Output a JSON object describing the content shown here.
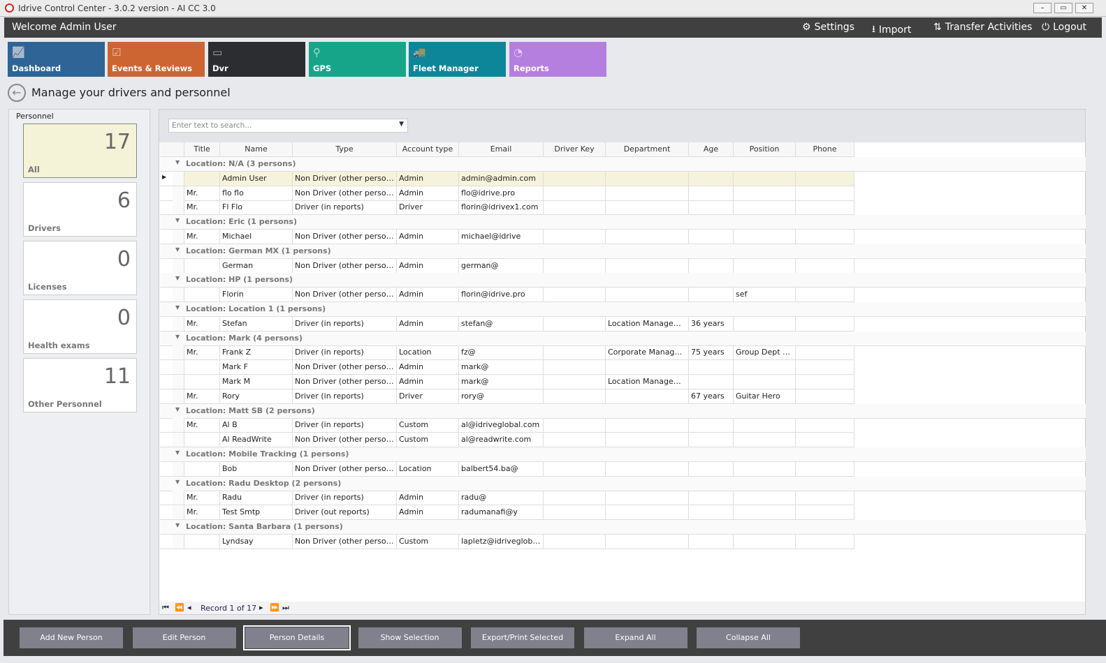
{
  "window": {
    "title": "Idrive Control Center - 3.0.2 version - AI CC 3.0",
    "controls": [
      "–",
      "▭",
      "✕"
    ]
  },
  "topbar": {
    "welcome": "Welcome Admin User",
    "links": [
      {
        "label": "Settings",
        "icon": "⚙"
      },
      {
        "label": "Import",
        "icon": "⭳"
      },
      {
        "label": "Transfer Activities",
        "icon": "⇅"
      },
      {
        "label": "Logout",
        "icon": "⏻"
      }
    ]
  },
  "tiles": [
    {
      "label": "Dashboard",
      "color": "#2f6496",
      "icon": "📈"
    },
    {
      "label": "Events & Reviews",
      "color": "#cd6533",
      "icon": "☑"
    },
    {
      "label": "Dvr",
      "color": "#2b2d31",
      "icon": "▭"
    },
    {
      "label": "GPS",
      "color": "#17a589",
      "icon": "⚲"
    },
    {
      "label": "Fleet Manager",
      "color": "#0e8699",
      "icon": "🚚"
    },
    {
      "label": "Reports",
      "color": "#b57fe0",
      "icon": "◔"
    }
  ],
  "page": {
    "title": "Manage your drivers and personnel"
  },
  "personnel": {
    "header": "Personnel",
    "cards": [
      {
        "count": "17",
        "label": "All"
      },
      {
        "count": "6",
        "label": "Drivers"
      },
      {
        "count": "0",
        "label": "Licenses"
      },
      {
        "count": "0",
        "label": "Health exams"
      },
      {
        "count": "11",
        "label": "Other Personnel"
      }
    ]
  },
  "search": {
    "placeholder": "Enter text to search..."
  },
  "columns": [
    "Title",
    "Name",
    "Type",
    "Account type",
    "Email",
    "Driver Key",
    "Department",
    "Age",
    "Position",
    "Phone"
  ],
  "groups": [
    {
      "label": "Location: N/A (3 persons)",
      "rows": [
        [
          "",
          "Admin User",
          "Non Driver (other personnel)",
          "Admin",
          "admin@admin.com",
          "",
          "",
          "",
          "",
          ""
        ],
        [
          "Mr.",
          "flo flo",
          "Non Driver (other personnel)",
          "Admin",
          "flo@idrive.pro",
          "",
          "",
          "",
          "",
          ""
        ],
        [
          "Mr.",
          "Fl Flo",
          "Driver (in reports)",
          "Driver",
          "florin@idrivex1.com",
          "",
          "",
          "",
          "",
          ""
        ]
      ]
    },
    {
      "label": "Location: Eric (1 persons)",
      "rows": [
        [
          "Mr.",
          "Michael",
          "Non Driver (other personnel)",
          "Admin",
          "michael@idrive",
          "",
          "",
          "",
          "",
          ""
        ]
      ]
    },
    {
      "label": "Location: German MX (1 persons)",
      "rows": [
        [
          "",
          "German",
          "Non Driver (other personnel)",
          "Admin",
          "german@",
          "",
          "",
          "",
          "",
          ""
        ]
      ]
    },
    {
      "label": "Location: HP (1 persons)",
      "rows": [
        [
          "",
          "Florin",
          "Non Driver (other personnel)",
          "Admin",
          "florin@idrive.pro",
          "",
          "",
          "",
          "sef",
          ""
        ]
      ]
    },
    {
      "label": "Location: Location 1 (1 persons)",
      "rows": [
        [
          "Mr.",
          "Stefan",
          "Driver (in reports)",
          "Admin",
          "stefan@",
          "",
          "Location Management",
          "36 years",
          "",
          ""
        ]
      ]
    },
    {
      "label": "Location: Mark (4 persons)",
      "rows": [
        [
          "Mr.",
          "Frank Z",
          "Driver (in reports)",
          "Location",
          "fz@",
          "",
          "Corporate Managem...",
          "75 years",
          "Group Dept user",
          ""
        ],
        [
          "",
          "Mark F",
          "Non Driver (other personnel)",
          "Admin",
          "mark@",
          "",
          "",
          "",
          "",
          ""
        ],
        [
          "",
          "Mark M",
          "Non Driver (other personnel)",
          "Admin",
          "mark@",
          "",
          "Location Management",
          "",
          "",
          ""
        ],
        [
          "Mr.",
          "Rory",
          "Driver (in reports)",
          "Driver",
          "rory@",
          "",
          "",
          "67 years",
          "Guitar Hero",
          ""
        ]
      ]
    },
    {
      "label": "Location: Matt SB (2 persons)",
      "rows": [
        [
          "Mr.",
          "Al B",
          "Driver (in reports)",
          "Custom",
          "al@idriveglobal.com",
          "",
          "",
          "",
          "",
          ""
        ],
        [
          "",
          "Al ReadWrite",
          "Non Driver (other personnel)",
          "Custom",
          "al@readwrite.com",
          "",
          "",
          "",
          "",
          ""
        ]
      ]
    },
    {
      "label": "Location: Mobile Tracking (1 persons)",
      "rows": [
        [
          "",
          "Bob",
          "Non Driver (other personnel)",
          "Location",
          "balbert54.ba@",
          "",
          "",
          "",
          "",
          ""
        ]
      ]
    },
    {
      "label": "Location: Radu Desktop (2 persons)",
      "rows": [
        [
          "Mr.",
          "Radu",
          "Driver (in reports)",
          "Admin",
          "radu@",
          "",
          "",
          "",
          "",
          ""
        ],
        [
          "Mr.",
          "Test Smtp",
          "Driver (out reports)",
          "Admin",
          "radumanafi@y",
          "",
          "",
          "",
          "",
          ""
        ]
      ]
    },
    {
      "label": "Location: Santa Barbara (1 persons)",
      "rows": [
        [
          "",
          "Lyndsay",
          "Non Driver (other personnel)",
          "Custom",
          "lapletz@idriveglobal....",
          "",
          "",
          "",
          "",
          ""
        ]
      ]
    }
  ],
  "pager": {
    "record": "Record 1 of 17"
  },
  "footer": {
    "buttons": [
      "Add New Person",
      "Edit Person",
      "Person Details",
      "Show Selection",
      "Export/Print Selected",
      "Expand All",
      "Collapse All"
    ],
    "selected": "Person Details"
  }
}
